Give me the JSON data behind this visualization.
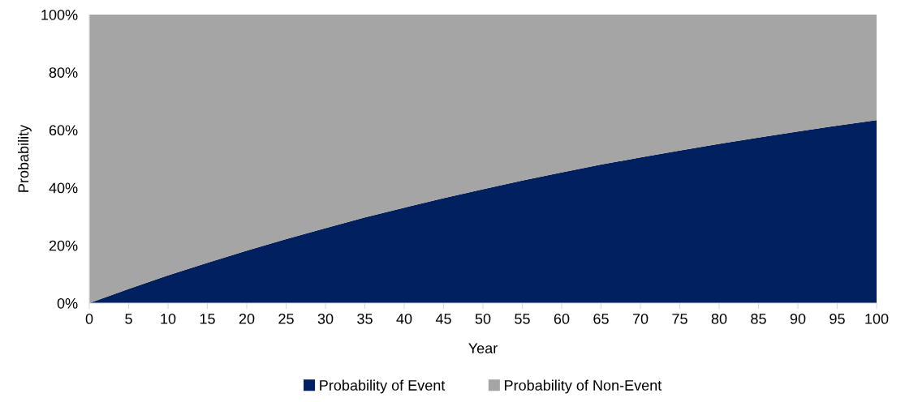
{
  "chart_data": {
    "type": "area",
    "stacked": true,
    "xlabel": "Year",
    "ylabel": "Probability",
    "x": [
      0,
      5,
      10,
      15,
      20,
      25,
      30,
      35,
      40,
      45,
      50,
      55,
      60,
      65,
      70,
      75,
      80,
      85,
      90,
      95,
      100
    ],
    "series": [
      {
        "name": "Probability of Event",
        "color": "#002060",
        "values": [
          0,
          4.9,
          9.6,
          14,
          18.2,
          22.2,
          26,
          29.7,
          33.1,
          36.4,
          39.5,
          42.5,
          45.3,
          48,
          50.5,
          52.9,
          55.2,
          57.4,
          59.5,
          61.5,
          63.4
        ]
      },
      {
        "name": "Probability of Non-Event",
        "color": "#a5a5a5",
        "values": [
          100,
          95.1,
          90.4,
          86,
          81.8,
          77.8,
          74,
          70.3,
          66.9,
          63.6,
          60.5,
          57.5,
          54.7,
          52,
          49.5,
          47.1,
          44.8,
          42.6,
          40.5,
          38.5,
          36.6
        ]
      }
    ],
    "xlim": [
      0,
      100
    ],
    "xticks": [
      0,
      5,
      10,
      15,
      20,
      25,
      30,
      35,
      40,
      45,
      50,
      55,
      60,
      65,
      70,
      75,
      80,
      85,
      90,
      95,
      100
    ],
    "ylim": [
      0,
      100
    ],
    "yticks": [
      {
        "value": 0,
        "label": "0%"
      },
      {
        "value": 20,
        "label": "20%"
      },
      {
        "value": 40,
        "label": "40%"
      },
      {
        "value": 60,
        "label": "60%"
      },
      {
        "value": 80,
        "label": "80%"
      },
      {
        "value": 100,
        "label": "100%"
      }
    ],
    "legend": "bottom"
  }
}
